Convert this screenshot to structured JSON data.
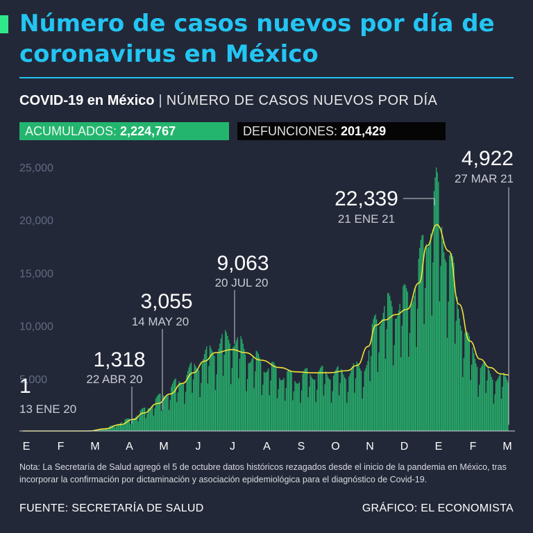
{
  "title": "Número de casos nuevos por día de coronavirus en México",
  "subtitle": {
    "bold": "COVID-19 en México",
    "separator": "|",
    "rest": "NÚMERO DE CASOS NUEVOS POR DÍA"
  },
  "stats": {
    "acumulados_label": "ACUMULADOS:",
    "acumulados_value": "2,224,767",
    "defunciones_label": "DEFUNCIONES:",
    "defunciones_value": "201,429"
  },
  "colors": {
    "background": "#232838",
    "title": "#23c5f3",
    "bars": "#27b56e",
    "trend_line": "#f2e33a",
    "acumulados_box": "#23b56e",
    "defunciones_box": "#050505"
  },
  "chart_data": {
    "type": "bar",
    "x_tick_labels": [
      "E",
      "F",
      "M",
      "A",
      "M",
      "J",
      "J",
      "A",
      "S",
      "O",
      "N",
      "D",
      "E",
      "F",
      "M"
    ],
    "y_tick_labels": [
      "5,000",
      "10,000",
      "15,000",
      "20,000",
      "25,000"
    ],
    "y_ticks": [
      5000,
      10000,
      15000,
      20000,
      25000
    ],
    "ylim": [
      0,
      25000
    ],
    "x_range": [
      "2020-01-13",
      "2021-03-27"
    ],
    "grid": false,
    "series": [
      {
        "name": "",
        "type": "bar",
        "x": [
          "2020-01-13",
          "2020-02-13",
          "2020-03-13",
          "2020-03-27",
          "2020-04-10",
          "2020-04-22",
          "2020-05-01",
          "2020-05-14",
          "2020-05-25",
          "2020-06-05",
          "2020-06-15",
          "2020-06-25",
          "2020-07-05",
          "2020-07-20",
          "2020-08-01",
          "2020-08-15",
          "2020-09-01",
          "2020-09-15",
          "2020-10-01",
          "2020-10-15",
          "2020-11-01",
          "2020-11-10",
          "2020-11-20",
          "2020-11-27",
          "2020-12-05",
          "2020-12-15",
          "2020-12-25",
          "2021-01-05",
          "2021-01-12",
          "2021-01-21",
          "2021-02-01",
          "2021-02-10",
          "2021-02-20",
          "2021-03-01",
          "2021-03-10",
          "2021-03-20",
          "2021-03-27"
        ],
        "values": [
          1,
          5,
          50,
          250,
          800,
          1318,
          2000,
          3055,
          4000,
          5000,
          6000,
          7000,
          8000,
          9063,
          7500,
          6500,
          5500,
          5000,
          5500,
          5500,
          5500,
          6000,
          6500,
          11000,
          11500,
          12000,
          12500,
          15000,
          19000,
          22339,
          17000,
          12000,
          8000,
          6500,
          5500,
          5000,
          4922
        ]
      },
      {
        "name": "",
        "type": "line",
        "x": [
          "2020-01-13",
          "2020-02-13",
          "2020-03-13",
          "2020-03-27",
          "2020-04-10",
          "2020-04-22",
          "2020-05-01",
          "2020-05-14",
          "2020-05-25",
          "2020-06-05",
          "2020-06-15",
          "2020-06-25",
          "2020-07-05",
          "2020-07-20",
          "2020-08-01",
          "2020-08-15",
          "2020-09-01",
          "2020-09-15",
          "2020-10-01",
          "2020-10-15",
          "2020-11-01",
          "2020-11-10",
          "2020-11-20",
          "2020-11-27",
          "2020-12-05",
          "2020-12-15",
          "2020-12-25",
          "2021-01-05",
          "2021-01-12",
          "2021-01-21",
          "2021-02-01",
          "2021-02-10",
          "2021-02-20",
          "2021-03-01",
          "2021-03-10",
          "2021-03-20",
          "2021-03-27"
        ],
        "values": [
          0,
          0,
          0,
          200,
          600,
          1100,
          1700,
          2600,
          3500,
          4500,
          5500,
          6600,
          7400,
          7700,
          7400,
          6700,
          6000,
          5600,
          5500,
          5500,
          5700,
          6200,
          8000,
          10000,
          10500,
          11000,
          11500,
          14000,
          17500,
          19500,
          17000,
          12000,
          8500,
          6800,
          6000,
          5400,
          5300
        ]
      }
    ],
    "annotations": [
      {
        "date": "2020-01-13",
        "value": 1,
        "label_value": "1",
        "label_date": "13 ENE 20"
      },
      {
        "date": "2020-04-22",
        "value": 1318,
        "label_value": "1,318",
        "label_date": "22 ABR 20"
      },
      {
        "date": "2020-05-14",
        "value": 3055,
        "label_value": "3,055",
        "label_date": "14 MAY 20"
      },
      {
        "date": "2020-07-20",
        "value": 9063,
        "label_value": "9,063",
        "label_date": "20 JUL 20"
      },
      {
        "date": "2021-01-21",
        "value": 22339,
        "label_value": "22,339",
        "label_date": "21 ENE 21"
      },
      {
        "date": "2021-03-27",
        "value": 4922,
        "label_value": "4,922",
        "label_date": "27 MAR 21"
      }
    ]
  },
  "note": "Nota: La Secretaría de Salud agregó el 5 de octubre datos históricos rezagados desde el inicio de la pandemia en México, tras incorporar la confirmación por dictaminación y asociación epidemiológica para el diagnóstico de Covid-19.",
  "source": "FUENTE: SECRETARÍA DE SALUD",
  "credit": "GRÁFICO: EL ECONOMISTA"
}
